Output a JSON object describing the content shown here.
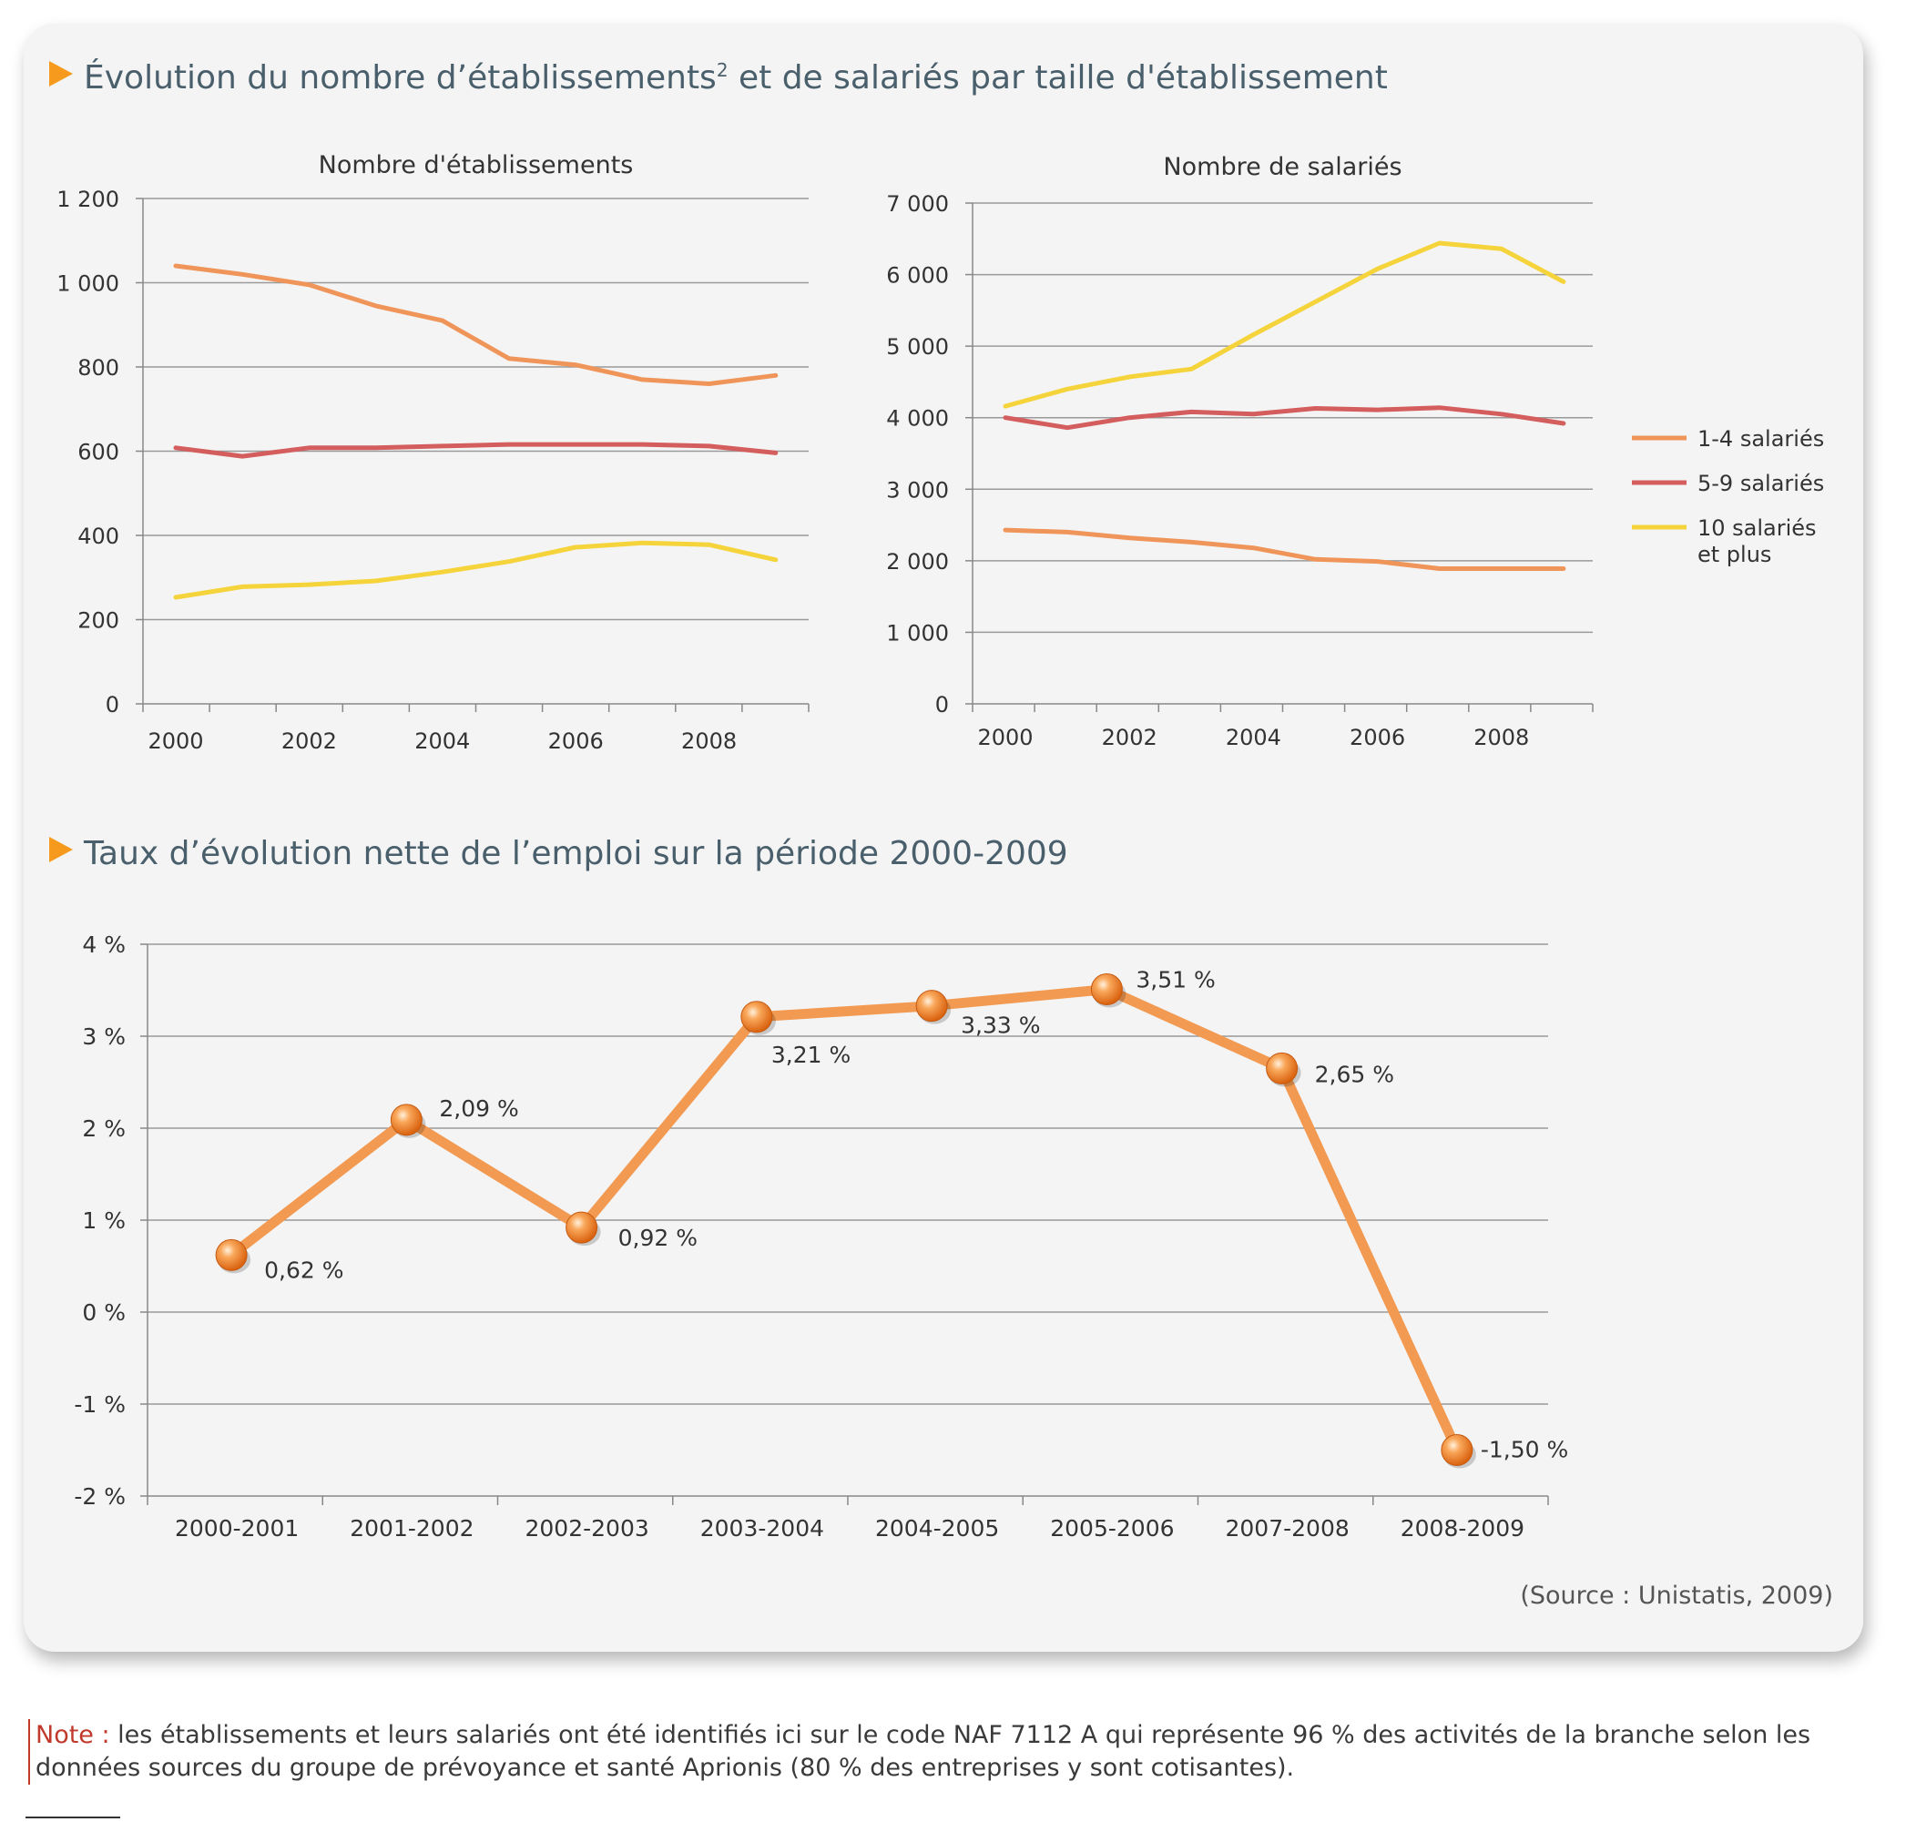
{
  "section1_title": "Évolution du nombre d’établissements",
  "section1_sup": "2",
  "section1_title_rest": " et de salariés par taille d'établissement",
  "section2_title": "Taux d’évolution nette de l’emploi sur la période 2000-2009",
  "source": "(Source : Unistatis, 2009)",
  "note": {
    "label": "Note :",
    "text": " les établissements et leurs salariés ont été identifiés ici sur le code NAF 7112 A qui représente 96 % des activités de la branche selon les données sources du groupe de prévoyance et santé Aprionis (80 % des entreprises y sont cotisantes)."
  },
  "colors": {
    "series_1_4": "#f0955a",
    "series_5_9": "#d45d5d",
    "series_10": "#f5d33a",
    "rate_line": "#f29a52",
    "accent": "#f59a1d",
    "title": "#4a5f6c"
  },
  "legend": [
    {
      "label_lines": [
        "1-4 salariés"
      ],
      "color": "#f0955a"
    },
    {
      "label_lines": [
        "5-9 salariés"
      ],
      "color": "#d45d5d"
    },
    {
      "label_lines": [
        "10 salariés",
        "et plus"
      ],
      "color": "#f5d33a"
    }
  ],
  "chart_data": [
    {
      "id": "etablissements",
      "type": "line",
      "title": "Nombre d'établissements",
      "x": [
        2000,
        2001,
        2002,
        2003,
        2004,
        2005,
        2006,
        2007,
        2008,
        2009
      ],
      "xticks": [
        "2000",
        "2002",
        "2004",
        "2006",
        "2008"
      ],
      "yticks": [
        "0",
        "200",
        "400",
        "600",
        "800",
        "1 000",
        "1 200"
      ],
      "ylim": [
        0,
        1200
      ],
      "series": [
        {
          "name": "1-4 salariés",
          "values": [
            1040,
            1020,
            995,
            945,
            910,
            820,
            805,
            770,
            760,
            780
          ]
        },
        {
          "name": "5-9 salariés",
          "values": [
            608,
            588,
            608,
            608,
            612,
            616,
            616,
            616,
            612,
            596
          ]
        },
        {
          "name": "10 salariés et plus",
          "values": [
            253,
            278,
            283,
            292,
            313,
            338,
            372,
            382,
            378,
            342
          ]
        }
      ]
    },
    {
      "id": "salaries",
      "type": "line",
      "title": "Nombre de salariés",
      "x": [
        2000,
        2001,
        2002,
        2003,
        2004,
        2005,
        2006,
        2007,
        2008,
        2009
      ],
      "xticks": [
        "2000",
        "2002",
        "2004",
        "2006",
        "2008"
      ],
      "yticks": [
        "0",
        "1 000",
        "2 000",
        "3 000",
        "4 000",
        "5 000",
        "6 000",
        "7 000"
      ],
      "ylim": [
        0,
        7000
      ],
      "series": [
        {
          "name": "1-4 salariés",
          "values": [
            2430,
            2400,
            2320,
            2260,
            2180,
            2020,
            1990,
            1890,
            1890,
            1890
          ]
        },
        {
          "name": "5-9 salariés",
          "values": [
            4000,
            3860,
            4000,
            4080,
            4050,
            4130,
            4110,
            4140,
            4050,
            3920
          ]
        },
        {
          "name": "10 salariés et plus",
          "values": [
            4160,
            4400,
            4570,
            4680,
            5160,
            5620,
            6080,
            6440,
            6360,
            5900
          ]
        }
      ]
    },
    {
      "id": "taux",
      "type": "line",
      "categories": [
        "2000-2001",
        "2001-2002",
        "2002-2003",
        "2003-2004",
        "2004-2005",
        "2005-2006",
        "2007-2008",
        "2008-2009"
      ],
      "values": [
        0.62,
        2.09,
        0.92,
        3.21,
        3.33,
        3.51,
        2.65,
        -1.5
      ],
      "data_labels": [
        "0,62 %",
        "2,09 %",
        "0,92 %",
        "3,21 %",
        "3,33 %",
        "3,51 %",
        "2,65 %",
        "-1,50 %"
      ],
      "yticks": [
        "-2 %",
        "-1 %",
        "0 %",
        "1 %",
        "2 %",
        "3 %",
        "4 %"
      ],
      "ylim": [
        -2,
        4
      ]
    }
  ]
}
